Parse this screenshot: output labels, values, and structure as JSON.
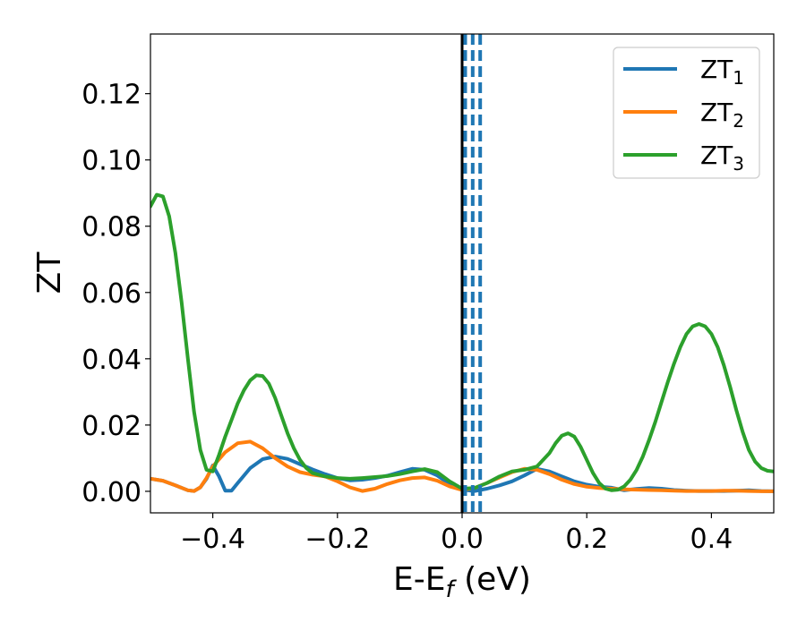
{
  "chart_data": {
    "type": "line",
    "xlabel": "E-E_f (eV)",
    "xlabel_parts": {
      "main": "E-E",
      "sub": "f",
      "tail": " (eV)"
    },
    "ylabel": "ZT",
    "xlim": [
      -0.5,
      0.5
    ],
    "ylim": [
      -0.0065,
      0.138
    ],
    "xticks": [
      -0.4,
      -0.2,
      0.0,
      0.2,
      0.4
    ],
    "xtick_labels": [
      "−0.4",
      "−0.2",
      "0.0",
      "0.2",
      "0.4"
    ],
    "yticks": [
      0.0,
      0.02,
      0.04,
      0.06,
      0.08,
      0.1,
      0.12
    ],
    "ytick_labels": [
      "0.00",
      "0.02",
      "0.04",
      "0.06",
      "0.08",
      "0.10",
      "0.12"
    ],
    "grid": false,
    "legend_position": "top-right",
    "vlines": [
      {
        "x": 0.0,
        "style": "solid",
        "color": "#000000"
      },
      {
        "x": 0.005,
        "style": "dashed",
        "color": "#1f77b4"
      },
      {
        "x": 0.017,
        "style": "dashed",
        "color": "#1f77b4"
      },
      {
        "x": 0.029,
        "style": "dashed",
        "color": "#1f77b4"
      }
    ],
    "series": [
      {
        "name": "ZT_1",
        "legend_main": "ZT",
        "legend_sub": "1",
        "color": "#1f77b4",
        "x": [
          -0.5,
          -0.48,
          -0.46,
          -0.44,
          -0.43,
          -0.42,
          -0.41,
          -0.4,
          -0.39,
          -0.38,
          -0.37,
          -0.36,
          -0.34,
          -0.32,
          -0.3,
          -0.28,
          -0.26,
          -0.24,
          -0.22,
          -0.2,
          -0.18,
          -0.16,
          -0.14,
          -0.12,
          -0.1,
          -0.08,
          -0.06,
          -0.04,
          -0.02,
          0.0,
          0.02,
          0.04,
          0.06,
          0.08,
          0.1,
          0.12,
          0.14,
          0.16,
          0.18,
          0.2,
          0.22,
          0.24,
          0.26,
          0.28,
          0.3,
          0.32,
          0.34,
          0.36,
          0.38,
          0.4,
          0.42,
          0.44,
          0.46,
          0.48,
          0.5
        ],
        "y": [
          0.0038,
          0.0032,
          0.0018,
          0.0003,
          0.0001,
          0.0012,
          0.0038,
          0.0078,
          0.0045,
          0.0002,
          0.0002,
          0.0025,
          0.007,
          0.0097,
          0.0105,
          0.0098,
          0.0082,
          0.0066,
          0.0052,
          0.004,
          0.0033,
          0.0035,
          0.004,
          0.0047,
          0.0058,
          0.0068,
          0.0065,
          0.0048,
          0.0022,
          0.0005,
          0.0001,
          0.0008,
          0.0018,
          0.003,
          0.0048,
          0.0068,
          0.006,
          0.0045,
          0.003,
          0.002,
          0.0014,
          0.0011,
          0.0003,
          0.0007,
          0.001,
          0.0008,
          0.0004,
          0.0002,
          0.0001,
          0.0001,
          0.0001,
          0.0002,
          0.0003,
          0.0001,
          0.0
        ]
      },
      {
        "name": "ZT_2",
        "legend_main": "ZT",
        "legend_sub": "2",
        "color": "#ff7f0e",
        "x": [
          -0.5,
          -0.48,
          -0.46,
          -0.44,
          -0.43,
          -0.42,
          -0.41,
          -0.4,
          -0.38,
          -0.36,
          -0.34,
          -0.32,
          -0.3,
          -0.28,
          -0.26,
          -0.24,
          -0.22,
          -0.2,
          -0.18,
          -0.16,
          -0.14,
          -0.12,
          -0.1,
          -0.08,
          -0.06,
          -0.04,
          -0.02,
          0.0,
          0.02,
          0.04,
          0.06,
          0.08,
          0.1,
          0.12,
          0.14,
          0.16,
          0.18,
          0.2,
          0.22,
          0.24,
          0.26,
          0.28,
          0.3,
          0.32,
          0.34,
          0.36,
          0.38,
          0.4,
          0.42,
          0.44,
          0.46,
          0.48,
          0.5
        ],
        "y": [
          0.0038,
          0.0032,
          0.0018,
          0.0003,
          0.0001,
          0.0012,
          0.004,
          0.0075,
          0.0118,
          0.0145,
          0.015,
          0.013,
          0.01,
          0.0075,
          0.0058,
          0.005,
          0.0045,
          0.003,
          0.0012,
          0.0001,
          0.0008,
          0.0022,
          0.0033,
          0.004,
          0.0042,
          0.0032,
          0.0015,
          0.0004,
          0.001,
          0.0025,
          0.0042,
          0.0058,
          0.0068,
          0.0065,
          0.0052,
          0.0035,
          0.0022,
          0.0014,
          0.001,
          0.0008,
          0.0006,
          0.0005,
          0.0004,
          0.0003,
          0.0002,
          0.0001,
          0.0001,
          0.0001,
          0.0002,
          0.0002,
          0.0001,
          0.0,
          0.0
        ]
      },
      {
        "name": "ZT_3",
        "legend_main": "ZT",
        "legend_sub": "3",
        "color": "#2ca02c",
        "x": [
          -0.5,
          -0.49,
          -0.48,
          -0.47,
          -0.46,
          -0.45,
          -0.44,
          -0.43,
          -0.42,
          -0.41,
          -0.4,
          -0.39,
          -0.38,
          -0.37,
          -0.36,
          -0.35,
          -0.34,
          -0.33,
          -0.32,
          -0.31,
          -0.3,
          -0.29,
          -0.28,
          -0.27,
          -0.26,
          -0.25,
          -0.24,
          -0.22,
          -0.2,
          -0.18,
          -0.16,
          -0.14,
          -0.12,
          -0.1,
          -0.08,
          -0.06,
          -0.04,
          -0.02,
          0.0,
          0.02,
          0.04,
          0.06,
          0.08,
          0.1,
          0.12,
          0.14,
          0.15,
          0.16,
          0.17,
          0.18,
          0.19,
          0.2,
          0.21,
          0.22,
          0.23,
          0.24,
          0.25,
          0.26,
          0.27,
          0.28,
          0.29,
          0.3,
          0.31,
          0.32,
          0.33,
          0.34,
          0.35,
          0.36,
          0.37,
          0.38,
          0.39,
          0.4,
          0.41,
          0.42,
          0.43,
          0.44,
          0.45,
          0.46,
          0.47,
          0.48,
          0.49,
          0.5
        ],
        "y": [
          0.086,
          0.0895,
          0.089,
          0.083,
          0.072,
          0.057,
          0.04,
          0.024,
          0.0125,
          0.0065,
          0.006,
          0.011,
          0.0165,
          0.0215,
          0.0265,
          0.0305,
          0.0335,
          0.035,
          0.0348,
          0.0325,
          0.0282,
          0.0228,
          0.0175,
          0.013,
          0.0095,
          0.007,
          0.0055,
          0.0045,
          0.004,
          0.0038,
          0.004,
          0.0043,
          0.0046,
          0.0052,
          0.006,
          0.0067,
          0.0058,
          0.003,
          0.0008,
          0.001,
          0.0025,
          0.0045,
          0.006,
          0.0065,
          0.0075,
          0.0115,
          0.0145,
          0.0168,
          0.0175,
          0.0165,
          0.0135,
          0.0095,
          0.0055,
          0.0025,
          0.0008,
          0.0003,
          0.0005,
          0.0015,
          0.0035,
          0.0065,
          0.0105,
          0.0155,
          0.021,
          0.027,
          0.033,
          0.0385,
          0.0435,
          0.0475,
          0.0498,
          0.0505,
          0.0498,
          0.0475,
          0.0435,
          0.038,
          0.0315,
          0.0245,
          0.018,
          0.0125,
          0.009,
          0.007,
          0.0062,
          0.006
        ]
      }
    ]
  }
}
